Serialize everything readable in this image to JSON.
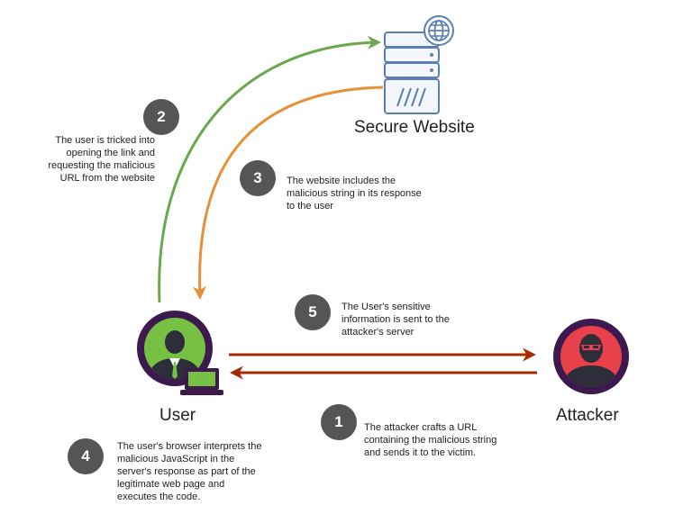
{
  "colors": {
    "green_arrow": "#6aa84f",
    "orange_arrow": "#e69138",
    "red_arrow": "#a52a00",
    "step_badge": "#555555",
    "user_ring": "#3d1a4d",
    "user_fill": "#76c043",
    "attacker_fill": "#e8414b",
    "server_blue": "#5b7fb5"
  },
  "labels": {
    "server": "Secure Website",
    "user": "User",
    "attacker": "Attacker"
  },
  "steps": [
    {
      "number": "1",
      "text": "The attacker crafts a URL\ncontaining the malicious string\nand sends it to the victim."
    },
    {
      "number": "2",
      "text": "The user is tricked into\nopening the link and\nrequesting the malicious\nURL from the website"
    },
    {
      "number": "3",
      "text": "The website includes the\nmalicious string in its response\nto the user"
    },
    {
      "number": "4",
      "text": "The user's browser interprets the\nmalicious JavaScript in the\nserver's response as part of the\nlegitimate web page and\nexecutes the code."
    },
    {
      "number": "5",
      "text": "The User's sensitive\ninformation is sent to the\nattacker's server"
    }
  ],
  "icons": {
    "server": "server-globe-icon",
    "user": "user-laptop-icon",
    "attacker": "hacker-icon"
  }
}
